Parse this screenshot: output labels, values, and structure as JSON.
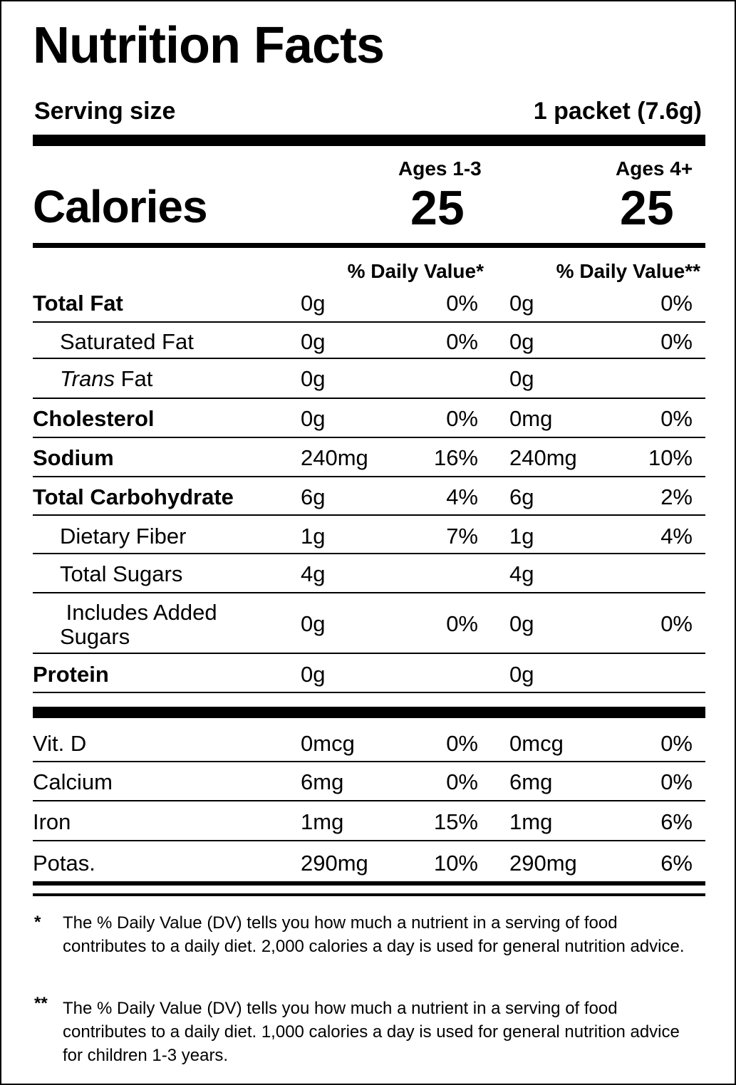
{
  "title": "Nutrition Facts",
  "serving": {
    "label": "Serving size",
    "value": "1 packet (7.6g)"
  },
  "calories": {
    "label": "Calories",
    "col1": {
      "age": "Ages 1-3",
      "value": "25"
    },
    "col2": {
      "age": "Ages 4+",
      "value": "25"
    }
  },
  "dv_headers": {
    "col1": "% Daily Value*",
    "col2": "% Daily Value**"
  },
  "nutrients": [
    {
      "name": "Total Fat",
      "v1": "0g",
      "p1": "0%",
      "v2": "0g",
      "p2": "0%"
    },
    {
      "name": "Saturated Fat",
      "v1": "0g",
      "p1": "0%",
      "v2": "0g",
      "p2": "0%"
    },
    {
      "name_italic": "Trans",
      "name_rest": " Fat",
      "v1": "0g",
      "p1": "",
      "v2": "0g",
      "p2": ""
    },
    {
      "name": "Cholesterol",
      "v1": "0g",
      "p1": "0%",
      "v2": "0mg",
      "p2": "0%"
    },
    {
      "name": "Sodium",
      "v1": "240mg",
      "p1": "16%",
      "v2": "240mg",
      "p2": "10%"
    },
    {
      "name": "Total Carbohydrate",
      "v1": "6g",
      "p1": "4%",
      "v2": "6g",
      "p2": "2%"
    },
    {
      "name": "Dietary Fiber",
      "v1": "1g",
      "p1": "7%",
      "v2": "1g",
      "p2": "4%"
    },
    {
      "name": "Total Sugars",
      "v1": "4g",
      "p1": "",
      "v2": "4g",
      "p2": ""
    },
    {
      "name_line1": " Includes Added",
      "name_line2": "Sugars",
      "v1": "0g",
      "p1": "0%",
      "v2": "0g",
      "p2": "0%"
    },
    {
      "name": "Protein",
      "v1": "0g",
      "p1": "",
      "v2": "0g",
      "p2": ""
    }
  ],
  "vitamins": [
    {
      "name": "Vit. D",
      "v1": "0mcg",
      "p1": "0%",
      "v2": "0mcg",
      "p2": "0%"
    },
    {
      "name": "Calcium",
      "v1": "6mg",
      "p1": "0%",
      "v2": "6mg",
      "p2": "0%"
    },
    {
      "name": "Iron",
      "v1": "1mg",
      "p1": "15%",
      "v2": "1mg",
      "p2": "6%"
    },
    {
      "name": "Potas.",
      "v1": "290mg",
      "p1": "10%",
      "v2": "290mg",
      "p2": "6%"
    }
  ],
  "footnotes": [
    {
      "mark": "*",
      "text": "The % Daily Value (DV) tells you how much a nutrient in a serving of food contributes to a daily diet. 2,000 calories a day is used for general nutrition advice."
    },
    {
      "mark": "**",
      "text": "The % Daily Value (DV) tells you how much a nutrient in a serving of food contributes to a daily diet. 1,000 calories a day is used for general nutrition advice for children 1-3 years."
    }
  ]
}
